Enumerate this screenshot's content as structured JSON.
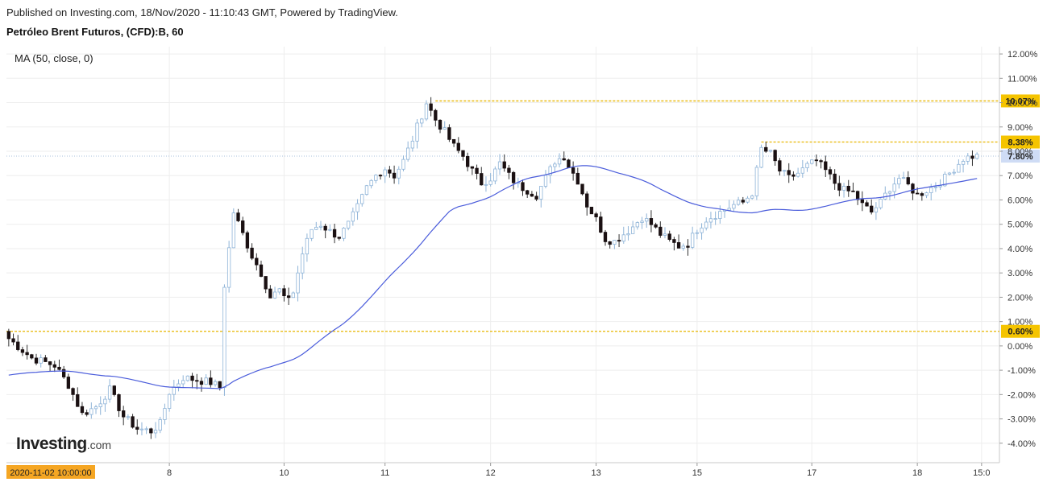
{
  "header": {
    "published": "Published on Investing.com, 18/Nov/2020 - 11:10:43 GMT, Powered by TradingView.",
    "instrument": "Petróleo Brent Futuros, (CFD):B, 60"
  },
  "indicator_label": "MA (50, close, 0)",
  "logo": {
    "word": "Investing",
    "suffix": ".com"
  },
  "colors": {
    "up_candle": "#ffffff",
    "up_border": "#8fb4d8",
    "down_candle": "#1a1012",
    "ma_line": "#4a5cdb",
    "level_line": "#e8b600",
    "level_label_bg": "#f5c400",
    "current_label_bg": "#cfdcf5",
    "date_label_bg": "#f5a623"
  },
  "chart_data": {
    "type": "candlestick",
    "title": "Petróleo Brent Futuros, (CFD):B, 60",
    "ylim": [
      -4.8,
      12.3
    ],
    "y_unit": "%",
    "y_ticks": [
      "12.00%",
      "11.00%",
      "10.00%",
      "9.00%",
      "8.00%",
      "7.00%",
      "6.00%",
      "5.00%",
      "4.00%",
      "3.00%",
      "2.00%",
      "1.00%",
      "0.00%",
      "-1.00%",
      "-2.00%",
      "-3.00%",
      "-4.00%"
    ],
    "x_ticks": [
      "8",
      "10",
      "11",
      "12",
      "13",
      "15",
      "17",
      "18",
      "15:0"
    ],
    "x_tick_index": [
      35,
      60,
      82,
      105,
      128,
      150,
      175,
      198,
      212
    ],
    "n_bars": 212,
    "start_label": "2020-11-02 10:00:00",
    "price_levels": [
      {
        "value": 10.07,
        "label": "10.07%"
      },
      {
        "value": 8.38,
        "label": "8.38%"
      },
      {
        "value": 0.6,
        "label": "0.60%"
      }
    ],
    "current": {
      "value": 7.8,
      "label": "7.80%"
    },
    "grid": true,
    "close_anchors": [
      [
        0,
        0.3
      ],
      [
        5,
        -0.5
      ],
      [
        10,
        -0.8
      ],
      [
        13,
        -1.6
      ],
      [
        16,
        -2.8
      ],
      [
        19,
        -2.5
      ],
      [
        22,
        -1.8
      ],
      [
        25,
        -2.9
      ],
      [
        28,
        -3.4
      ],
      [
        31,
        -3.5
      ],
      [
        33,
        -3.2
      ],
      [
        35,
        -1.9
      ],
      [
        38,
        -1.3
      ],
      [
        41,
        -1.4
      ],
      [
        44,
        -1.5
      ],
      [
        46,
        -1.7
      ],
      [
        47,
        2.5
      ],
      [
        49,
        5.5
      ],
      [
        51,
        4.6
      ],
      [
        53,
        3.7
      ],
      [
        55,
        3.0
      ],
      [
        57,
        2.0
      ],
      [
        59,
        2.3
      ],
      [
        60,
        1.9
      ],
      [
        62,
        2.2
      ],
      [
        64,
        3.8
      ],
      [
        66,
        4.8
      ],
      [
        68,
        5.0
      ],
      [
        70,
        4.7
      ],
      [
        72,
        4.5
      ],
      [
        74,
        5.0
      ],
      [
        76,
        5.7
      ],
      [
        78,
        6.5
      ],
      [
        80,
        7.0
      ],
      [
        82,
        7.3
      ],
      [
        84,
        7.0
      ],
      [
        86,
        7.6
      ],
      [
        88,
        8.5
      ],
      [
        90,
        9.5
      ],
      [
        91,
        10.0
      ],
      [
        93,
        9.3
      ],
      [
        95,
        8.8
      ],
      [
        97,
        8.2
      ],
      [
        99,
        7.8
      ],
      [
        101,
        7.2
      ],
      [
        103,
        6.7
      ],
      [
        105,
        6.9
      ],
      [
        107,
        7.5
      ],
      [
        109,
        7.0
      ],
      [
        111,
        6.6
      ],
      [
        113,
        6.4
      ],
      [
        115,
        6.2
      ],
      [
        117,
        6.9
      ],
      [
        119,
        7.6
      ],
      [
        121,
        7.8
      ],
      [
        122,
        7.4
      ],
      [
        124,
        6.8
      ],
      [
        126,
        5.8
      ],
      [
        128,
        5.2
      ],
      [
        130,
        4.4
      ],
      [
        132,
        4.3
      ],
      [
        134,
        4.6
      ],
      [
        136,
        4.9
      ],
      [
        138,
        5.3
      ],
      [
        140,
        5.0
      ],
      [
        142,
        4.6
      ],
      [
        144,
        4.3
      ],
      [
        146,
        4.1
      ],
      [
        148,
        4.2
      ],
      [
        150,
        4.8
      ],
      [
        152,
        5.2
      ],
      [
        154,
        5.4
      ],
      [
        156,
        5.6
      ],
      [
        158,
        5.8
      ],
      [
        160,
        5.9
      ],
      [
        162,
        6.3
      ],
      [
        164,
        8.1
      ],
      [
        166,
        7.9
      ],
      [
        168,
        7.2
      ],
      [
        170,
        6.9
      ],
      [
        172,
        7.1
      ],
      [
        174,
        7.4
      ],
      [
        176,
        7.6
      ],
      [
        178,
        7.2
      ],
      [
        180,
        6.7
      ],
      [
        182,
        6.4
      ],
      [
        184,
        6.3
      ],
      [
        186,
        5.8
      ],
      [
        188,
        5.5
      ],
      [
        190,
        5.9
      ],
      [
        192,
        6.5
      ],
      [
        194,
        6.9
      ],
      [
        196,
        6.6
      ],
      [
        198,
        6.2
      ],
      [
        200,
        6.4
      ],
      [
        202,
        6.6
      ],
      [
        204,
        6.9
      ],
      [
        206,
        7.3
      ],
      [
        208,
        7.7
      ],
      [
        210,
        7.8
      ],
      [
        211,
        7.8
      ]
    ],
    "ma": {
      "name": "MA (50, close, 0)",
      "period": 50
    }
  }
}
